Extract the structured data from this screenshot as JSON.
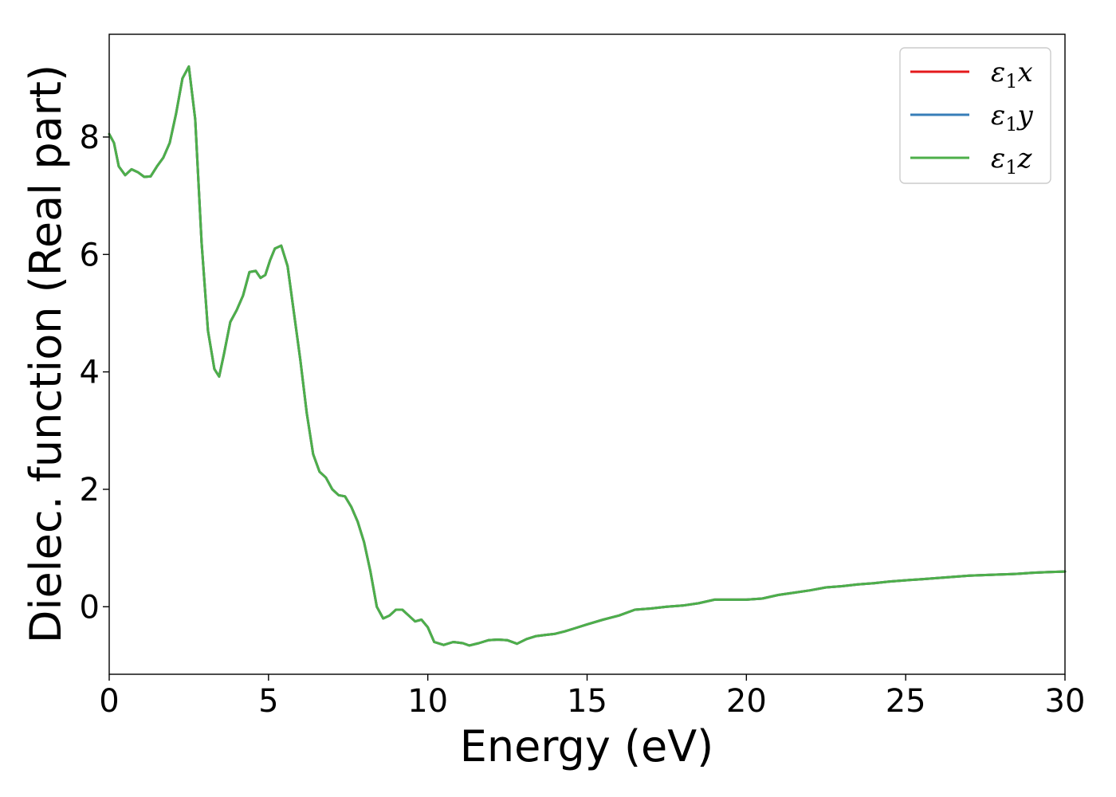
{
  "chart_data": {
    "type": "line",
    "title": "",
    "xlabel": "Energy (eV)",
    "ylabel": "Dielec. function (Real part)",
    "xlim": [
      0,
      30
    ],
    "ylim": [
      -1.15,
      9.75
    ],
    "xticks": [
      0,
      5,
      10,
      15,
      20,
      25,
      30
    ],
    "yticks": [
      0,
      2,
      4,
      6,
      8
    ],
    "grid": false,
    "legend_position": "top-right",
    "series": [
      {
        "name": "ε1x",
        "name_main": "ε",
        "name_sub": "1",
        "name_var": "x",
        "color": "#e41a1c",
        "x": [
          0,
          0.15,
          0.3,
          0.5,
          0.7,
          0.9,
          1.1,
          1.3,
          1.5,
          1.7,
          1.9,
          2.1,
          2.3,
          2.5,
          2.7,
          2.9,
          3.1,
          3.3,
          3.45,
          3.6,
          3.8,
          4.0,
          4.2,
          4.4,
          4.6,
          4.75,
          4.9,
          5.05,
          5.2,
          5.4,
          5.6,
          5.8,
          6.0,
          6.2,
          6.4,
          6.6,
          6.8,
          7.0,
          7.2,
          7.4,
          7.6,
          7.8,
          8.0,
          8.2,
          8.4,
          8.6,
          8.8,
          9.0,
          9.2,
          9.4,
          9.6,
          9.8,
          10.0,
          10.2,
          10.5,
          10.8,
          11.1,
          11.3,
          11.6,
          11.9,
          12.2,
          12.5,
          12.8,
          13.1,
          13.4,
          13.7,
          14.0,
          14.3,
          14.6,
          15.0,
          15.5,
          16.0,
          16.5,
          17.0,
          17.5,
          18.0,
          18.5,
          19.0,
          19.5,
          20.0,
          20.5,
          21.0,
          21.5,
          22.0,
          22.5,
          23.0,
          23.5,
          24.0,
          24.5,
          25.0,
          25.5,
          26.0,
          26.5,
          27.0,
          27.5,
          28.0,
          28.5,
          29.0,
          29.5,
          30.0
        ],
        "y": [
          8.05,
          7.9,
          7.5,
          7.35,
          7.45,
          7.4,
          7.32,
          7.33,
          7.5,
          7.65,
          7.9,
          8.4,
          9.0,
          9.2,
          8.3,
          6.2,
          4.7,
          4.05,
          3.92,
          4.3,
          4.85,
          5.05,
          5.3,
          5.7,
          5.72,
          5.6,
          5.65,
          5.9,
          6.1,
          6.15,
          5.8,
          5.0,
          4.2,
          3.3,
          2.6,
          2.3,
          2.2,
          2.0,
          1.9,
          1.88,
          1.7,
          1.45,
          1.1,
          0.6,
          0.0,
          -0.2,
          -0.15,
          -0.05,
          -0.05,
          -0.15,
          -0.25,
          -0.22,
          -0.35,
          -0.6,
          -0.65,
          -0.6,
          -0.62,
          -0.66,
          -0.62,
          -0.57,
          -0.56,
          -0.57,
          -0.63,
          -0.55,
          -0.5,
          -0.48,
          -0.46,
          -0.42,
          -0.37,
          -0.3,
          -0.22,
          -0.15,
          -0.05,
          -0.03,
          0.0,
          0.02,
          0.06,
          0.12,
          0.12,
          0.12,
          0.14,
          0.2,
          0.24,
          0.28,
          0.33,
          0.35,
          0.38,
          0.4,
          0.43,
          0.45,
          0.47,
          0.49,
          0.51,
          0.53,
          0.54,
          0.55,
          0.56,
          0.58,
          0.59,
          0.6
        ]
      },
      {
        "name": "ε1y",
        "name_main": "ε",
        "name_sub": "1",
        "name_var": "y",
        "color": "#377eb8",
        "x": [
          0,
          0.15,
          0.3,
          0.5,
          0.7,
          0.9,
          1.1,
          1.3,
          1.5,
          1.7,
          1.9,
          2.1,
          2.3,
          2.5,
          2.7,
          2.9,
          3.1,
          3.3,
          3.45,
          3.6,
          3.8,
          4.0,
          4.2,
          4.4,
          4.6,
          4.75,
          4.9,
          5.05,
          5.2,
          5.4,
          5.6,
          5.8,
          6.0,
          6.2,
          6.4,
          6.6,
          6.8,
          7.0,
          7.2,
          7.4,
          7.6,
          7.8,
          8.0,
          8.2,
          8.4,
          8.6,
          8.8,
          9.0,
          9.2,
          9.4,
          9.6,
          9.8,
          10.0,
          10.2,
          10.5,
          10.8,
          11.1,
          11.3,
          11.6,
          11.9,
          12.2,
          12.5,
          12.8,
          13.1,
          13.4,
          13.7,
          14.0,
          14.3,
          14.6,
          15.0,
          15.5,
          16.0,
          16.5,
          17.0,
          17.5,
          18.0,
          18.5,
          19.0,
          19.5,
          20.0,
          20.5,
          21.0,
          21.5,
          22.0,
          22.5,
          23.0,
          23.5,
          24.0,
          24.5,
          25.0,
          25.5,
          26.0,
          26.5,
          27.0,
          27.5,
          28.0,
          28.5,
          29.0,
          29.5,
          30.0
        ],
        "y": [
          8.05,
          7.9,
          7.5,
          7.35,
          7.45,
          7.4,
          7.32,
          7.33,
          7.5,
          7.65,
          7.9,
          8.4,
          9.0,
          9.2,
          8.3,
          6.2,
          4.7,
          4.05,
          3.92,
          4.3,
          4.85,
          5.05,
          5.3,
          5.7,
          5.72,
          5.6,
          5.65,
          5.9,
          6.1,
          6.15,
          5.8,
          5.0,
          4.2,
          3.3,
          2.6,
          2.3,
          2.2,
          2.0,
          1.9,
          1.88,
          1.7,
          1.45,
          1.1,
          0.6,
          0.0,
          -0.2,
          -0.15,
          -0.05,
          -0.05,
          -0.15,
          -0.25,
          -0.22,
          -0.35,
          -0.6,
          -0.65,
          -0.6,
          -0.62,
          -0.66,
          -0.62,
          -0.57,
          -0.56,
          -0.57,
          -0.63,
          -0.55,
          -0.5,
          -0.48,
          -0.46,
          -0.42,
          -0.37,
          -0.3,
          -0.22,
          -0.15,
          -0.05,
          -0.03,
          0.0,
          0.02,
          0.06,
          0.12,
          0.12,
          0.12,
          0.14,
          0.2,
          0.24,
          0.28,
          0.33,
          0.35,
          0.38,
          0.4,
          0.43,
          0.45,
          0.47,
          0.49,
          0.51,
          0.53,
          0.54,
          0.55,
          0.56,
          0.58,
          0.59,
          0.6
        ]
      },
      {
        "name": "ε1z",
        "name_main": "ε",
        "name_sub": "1",
        "name_var": "z",
        "color": "#4daf4a",
        "x": [
          0,
          0.15,
          0.3,
          0.5,
          0.7,
          0.9,
          1.1,
          1.3,
          1.5,
          1.7,
          1.9,
          2.1,
          2.3,
          2.5,
          2.7,
          2.9,
          3.1,
          3.3,
          3.45,
          3.6,
          3.8,
          4.0,
          4.2,
          4.4,
          4.6,
          4.75,
          4.9,
          5.05,
          5.2,
          5.4,
          5.6,
          5.8,
          6.0,
          6.2,
          6.4,
          6.6,
          6.8,
          7.0,
          7.2,
          7.4,
          7.6,
          7.8,
          8.0,
          8.2,
          8.4,
          8.6,
          8.8,
          9.0,
          9.2,
          9.4,
          9.6,
          9.8,
          10.0,
          10.2,
          10.5,
          10.8,
          11.1,
          11.3,
          11.6,
          11.9,
          12.2,
          12.5,
          12.8,
          13.1,
          13.4,
          13.7,
          14.0,
          14.3,
          14.6,
          15.0,
          15.5,
          16.0,
          16.5,
          17.0,
          17.5,
          18.0,
          18.5,
          19.0,
          19.5,
          20.0,
          20.5,
          21.0,
          21.5,
          22.0,
          22.5,
          23.0,
          23.5,
          24.0,
          24.5,
          25.0,
          25.5,
          26.0,
          26.5,
          27.0,
          27.5,
          28.0,
          28.5,
          29.0,
          29.5,
          30.0
        ],
        "y": [
          8.05,
          7.9,
          7.5,
          7.35,
          7.45,
          7.4,
          7.32,
          7.33,
          7.5,
          7.65,
          7.9,
          8.4,
          9.0,
          9.2,
          8.3,
          6.2,
          4.7,
          4.05,
          3.92,
          4.3,
          4.85,
          5.05,
          5.3,
          5.7,
          5.72,
          5.6,
          5.65,
          5.9,
          6.1,
          6.15,
          5.8,
          5.0,
          4.2,
          3.3,
          2.6,
          2.3,
          2.2,
          2.0,
          1.9,
          1.88,
          1.7,
          1.45,
          1.1,
          0.6,
          0.0,
          -0.2,
          -0.15,
          -0.05,
          -0.05,
          -0.15,
          -0.25,
          -0.22,
          -0.35,
          -0.6,
          -0.65,
          -0.6,
          -0.62,
          -0.66,
          -0.62,
          -0.57,
          -0.56,
          -0.57,
          -0.63,
          -0.55,
          -0.5,
          -0.48,
          -0.46,
          -0.42,
          -0.37,
          -0.3,
          -0.22,
          -0.15,
          -0.05,
          -0.03,
          0.0,
          0.02,
          0.06,
          0.12,
          0.12,
          0.12,
          0.14,
          0.2,
          0.24,
          0.28,
          0.33,
          0.35,
          0.38,
          0.4,
          0.43,
          0.45,
          0.47,
          0.49,
          0.51,
          0.53,
          0.54,
          0.55,
          0.56,
          0.58,
          0.59,
          0.6
        ]
      }
    ]
  }
}
